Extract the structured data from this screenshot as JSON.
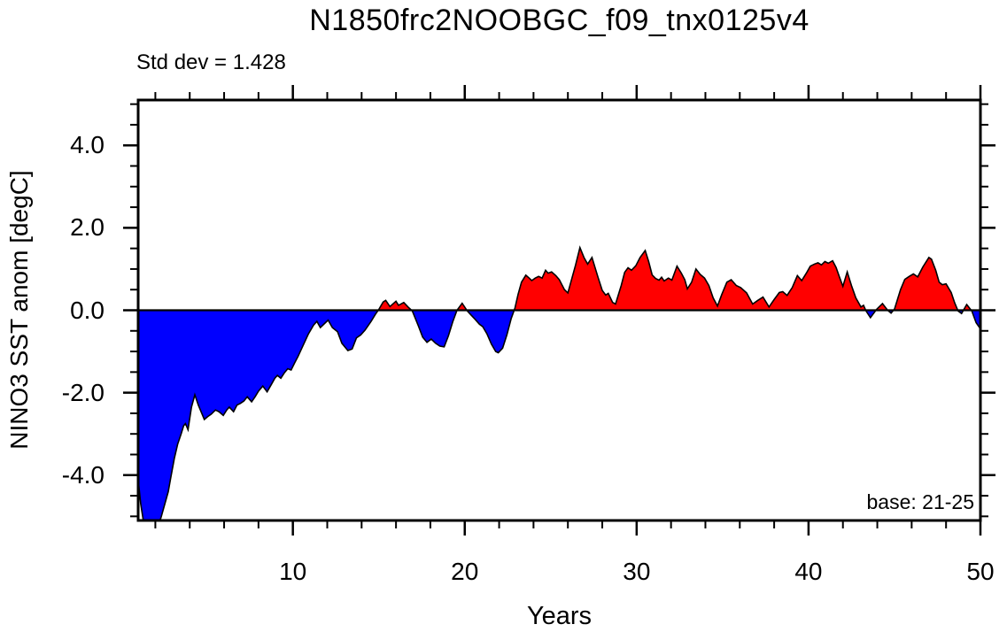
{
  "figure": {
    "title": "N1850frc2NOOBGC_f09_tnx0125v4",
    "stddev_note": "Std dev = 1.428",
    "base_note": "base: 21-25",
    "ylabel": "NINO3 SST anom [degC]",
    "xlabel": "Years"
  },
  "chart_data": {
    "type": "area",
    "title": "N1850frc2NOOBGC_f09_tnx0125v4",
    "xlabel": "Years",
    "ylabel": "NINO3 SST anom [degC]",
    "annotations": [
      "Std dev = 1.428",
      "base: 21-25"
    ],
    "series_name": "NINO3 SST anomaly",
    "legend": "none",
    "grid": false,
    "xlim": [
      1,
      50
    ],
    "ylim": [
      -5.1,
      5.1
    ],
    "x_major_ticks": [
      10,
      20,
      30,
      40,
      50
    ],
    "x_tick_labels": [
      "10",
      "20",
      "30",
      "40",
      "50"
    ],
    "x_minor_step": 2,
    "y_major_ticks": [
      -4,
      -2,
      0,
      2,
      4
    ],
    "y_tick_labels": [
      "-4.0",
      "-2.0",
      "0.0",
      "2.0",
      "4.0"
    ],
    "y_minor_step": 0.5,
    "positive_color": "#ff0000",
    "negative_color": "#0000ff",
    "line_color": "#000000",
    "zero_line": true,
    "points": [
      [
        1.0,
        -4.1
      ],
      [
        1.15,
        -4.7
      ],
      [
        1.3,
        -5.1
      ],
      [
        1.5,
        -5.4
      ],
      [
        1.75,
        -5.5
      ],
      [
        2.0,
        -5.45
      ],
      [
        2.2,
        -5.2
      ],
      [
        2.35,
        -5.0
      ],
      [
        2.55,
        -4.7
      ],
      [
        2.75,
        -4.4
      ],
      [
        2.9,
        -4.05
      ],
      [
        3.1,
        -3.6
      ],
      [
        3.3,
        -3.25
      ],
      [
        3.5,
        -3.0
      ],
      [
        3.65,
        -2.8
      ],
      [
        3.75,
        -2.75
      ],
      [
        3.9,
        -2.9
      ],
      [
        4.1,
        -2.35
      ],
      [
        4.3,
        -2.05
      ],
      [
        4.5,
        -2.3
      ],
      [
        4.7,
        -2.5
      ],
      [
        4.85,
        -2.65
      ],
      [
        5.05,
        -2.58
      ],
      [
        5.25,
        -2.52
      ],
      [
        5.5,
        -2.42
      ],
      [
        5.7,
        -2.46
      ],
      [
        5.95,
        -2.55
      ],
      [
        6.15,
        -2.42
      ],
      [
        6.3,
        -2.35
      ],
      [
        6.55,
        -2.46
      ],
      [
        6.75,
        -2.3
      ],
      [
        6.95,
        -2.26
      ],
      [
        7.15,
        -2.2
      ],
      [
        7.35,
        -2.1
      ],
      [
        7.6,
        -2.22
      ],
      [
        7.8,
        -2.1
      ],
      [
        8.0,
        -1.96
      ],
      [
        8.25,
        -1.84
      ],
      [
        8.5,
        -1.98
      ],
      [
        8.75,
        -1.8
      ],
      [
        8.95,
        -1.65
      ],
      [
        9.1,
        -1.58
      ],
      [
        9.3,
        -1.65
      ],
      [
        9.5,
        -1.52
      ],
      [
        9.7,
        -1.42
      ],
      [
        9.9,
        -1.45
      ],
      [
        10.1,
        -1.28
      ],
      [
        10.3,
        -1.12
      ],
      [
        10.6,
        -0.85
      ],
      [
        10.9,
        -0.58
      ],
      [
        11.2,
        -0.36
      ],
      [
        11.4,
        -0.27
      ],
      [
        11.6,
        -0.42
      ],
      [
        11.9,
        -0.3
      ],
      [
        12.05,
        -0.24
      ],
      [
        12.3,
        -0.42
      ],
      [
        12.6,
        -0.52
      ],
      [
        12.85,
        -0.8
      ],
      [
        13.2,
        -0.98
      ],
      [
        13.45,
        -0.94
      ],
      [
        13.7,
        -0.67
      ],
      [
        13.95,
        -0.6
      ],
      [
        14.2,
        -0.48
      ],
      [
        14.55,
        -0.27
      ],
      [
        14.8,
        -0.1
      ],
      [
        15.0,
        0.02
      ],
      [
        15.25,
        0.2
      ],
      [
        15.4,
        0.24
      ],
      [
        15.65,
        0.09
      ],
      [
        16.0,
        0.22
      ],
      [
        16.15,
        0.12
      ],
      [
        16.45,
        0.19
      ],
      [
        16.7,
        0.08
      ],
      [
        16.95,
        -0.02
      ],
      [
        17.3,
        -0.38
      ],
      [
        17.55,
        -0.65
      ],
      [
        17.8,
        -0.78
      ],
      [
        18.05,
        -0.7
      ],
      [
        18.3,
        -0.8
      ],
      [
        18.55,
        -0.87
      ],
      [
        18.8,
        -0.89
      ],
      [
        19.05,
        -0.62
      ],
      [
        19.3,
        -0.28
      ],
      [
        19.55,
        0.0
      ],
      [
        19.85,
        0.17
      ],
      [
        20.15,
        -0.02
      ],
      [
        20.4,
        -0.13
      ],
      [
        20.6,
        -0.22
      ],
      [
        20.85,
        -0.34
      ],
      [
        21.05,
        -0.4
      ],
      [
        21.3,
        -0.58
      ],
      [
        21.55,
        -0.82
      ],
      [
        21.8,
        -1.0
      ],
      [
        21.95,
        -1.03
      ],
      [
        22.2,
        -0.92
      ],
      [
        22.45,
        -0.6
      ],
      [
        22.7,
        -0.2
      ],
      [
        22.92,
        0.05
      ],
      [
        23.1,
        0.38
      ],
      [
        23.3,
        0.68
      ],
      [
        23.55,
        0.85
      ],
      [
        23.75,
        0.78
      ],
      [
        23.9,
        0.72
      ],
      [
        24.1,
        0.78
      ],
      [
        24.3,
        0.82
      ],
      [
        24.5,
        0.78
      ],
      [
        24.7,
        0.97
      ],
      [
        24.85,
        0.9
      ],
      [
        25.05,
        0.93
      ],
      [
        25.3,
        0.84
      ],
      [
        25.5,
        0.74
      ],
      [
        25.8,
        0.5
      ],
      [
        26.0,
        0.42
      ],
      [
        26.45,
        1.1
      ],
      [
        26.7,
        1.52
      ],
      [
        26.95,
        1.27
      ],
      [
        27.15,
        1.12
      ],
      [
        27.4,
        1.28
      ],
      [
        27.75,
        0.8
      ],
      [
        28.0,
        0.48
      ],
      [
        28.2,
        0.37
      ],
      [
        28.35,
        0.41
      ],
      [
        28.6,
        0.19
      ],
      [
        28.77,
        0.15
      ],
      [
        29.1,
        0.6
      ],
      [
        29.3,
        0.92
      ],
      [
        29.5,
        1.03
      ],
      [
        29.7,
        0.97
      ],
      [
        29.95,
        1.08
      ],
      [
        30.2,
        1.28
      ],
      [
        30.5,
        1.45
      ],
      [
        30.7,
        1.18
      ],
      [
        30.9,
        0.86
      ],
      [
        31.1,
        0.77
      ],
      [
        31.3,
        0.73
      ],
      [
        31.45,
        0.8
      ],
      [
        31.6,
        0.71
      ],
      [
        31.85,
        0.78
      ],
      [
        32.05,
        0.73
      ],
      [
        32.35,
        1.07
      ],
      [
        32.6,
        0.9
      ],
      [
        32.8,
        0.74
      ],
      [
        32.95,
        0.52
      ],
      [
        33.2,
        0.68
      ],
      [
        33.45,
        1.0
      ],
      [
        33.7,
        0.87
      ],
      [
        33.95,
        0.78
      ],
      [
        34.2,
        0.6
      ],
      [
        34.45,
        0.3
      ],
      [
        34.7,
        0.1
      ],
      [
        34.95,
        0.38
      ],
      [
        35.25,
        0.68
      ],
      [
        35.5,
        0.74
      ],
      [
        35.8,
        0.6
      ],
      [
        36.05,
        0.55
      ],
      [
        36.4,
        0.42
      ],
      [
        36.75,
        0.15
      ],
      [
        37.05,
        0.24
      ],
      [
        37.35,
        0.32
      ],
      [
        37.7,
        0.08
      ],
      [
        38.0,
        0.26
      ],
      [
        38.3,
        0.43
      ],
      [
        38.5,
        0.45
      ],
      [
        38.75,
        0.36
      ],
      [
        39.05,
        0.55
      ],
      [
        39.35,
        0.84
      ],
      [
        39.6,
        0.72
      ],
      [
        39.9,
        0.92
      ],
      [
        40.1,
        1.07
      ],
      [
        40.35,
        1.12
      ],
      [
        40.55,
        1.15
      ],
      [
        40.75,
        1.1
      ],
      [
        40.95,
        1.18
      ],
      [
        41.15,
        1.14
      ],
      [
        41.4,
        1.2
      ],
      [
        41.6,
        1.04
      ],
      [
        41.8,
        0.8
      ],
      [
        42.0,
        0.58
      ],
      [
        42.25,
        0.93
      ],
      [
        42.5,
        0.6
      ],
      [
        42.75,
        0.3
      ],
      [
        43.05,
        0.08
      ],
      [
        43.2,
        0.12
      ],
      [
        43.35,
        -0.02
      ],
      [
        43.6,
        -0.18
      ],
      [
        43.95,
        0.02
      ],
      [
        44.3,
        0.16
      ],
      [
        44.6,
        0.0
      ],
      [
        44.8,
        -0.07
      ],
      [
        45.0,
        0.03
      ],
      [
        45.35,
        0.5
      ],
      [
        45.6,
        0.75
      ],
      [
        45.85,
        0.82
      ],
      [
        46.1,
        0.88
      ],
      [
        46.35,
        0.81
      ],
      [
        46.65,
        1.05
      ],
      [
        47.0,
        1.28
      ],
      [
        47.15,
        1.24
      ],
      [
        47.4,
        0.97
      ],
      [
        47.6,
        0.68
      ],
      [
        47.78,
        0.62
      ],
      [
        48.0,
        0.64
      ],
      [
        48.3,
        0.43
      ],
      [
        48.5,
        0.18
      ],
      [
        48.7,
        -0.02
      ],
      [
        48.9,
        -0.08
      ],
      [
        49.2,
        0.14
      ],
      [
        49.5,
        -0.02
      ],
      [
        49.75,
        -0.3
      ],
      [
        50.0,
        -0.45
      ]
    ]
  }
}
